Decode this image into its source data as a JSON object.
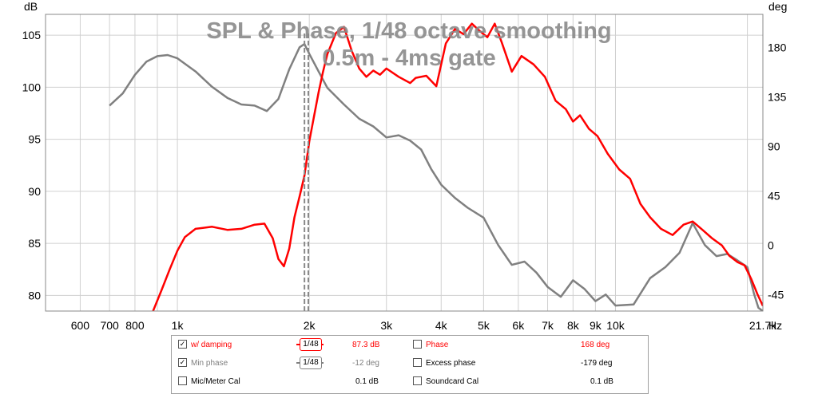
{
  "chart_data": {
    "type": "line",
    "title": "SPL & Phase, 1/48 octave smoothing",
    "subtitle": "0.5m - 4ms gate",
    "xlabel": "Hz",
    "ylabel_left": "dB",
    "ylabel_right": "deg",
    "x_scale": "log",
    "xlim": [
      500,
      21700
    ],
    "ylim_left": [
      78.5,
      107
    ],
    "ylim_right": [
      -60,
      210
    ],
    "grid": true,
    "x_ticks": [
      {
        "v": 600,
        "label": "600"
      },
      {
        "v": 700,
        "label": "700"
      },
      {
        "v": 800,
        "label": "800"
      },
      {
        "v": 1000,
        "label": "1k"
      },
      {
        "v": 2000,
        "label": "2k"
      },
      {
        "v": 3000,
        "label": "3k"
      },
      {
        "v": 4000,
        "label": "4k"
      },
      {
        "v": 5000,
        "label": "5k"
      },
      {
        "v": 6000,
        "label": "6k"
      },
      {
        "v": 7000,
        "label": "7k"
      },
      {
        "v": 8000,
        "label": "8k"
      },
      {
        "v": 9000,
        "label": "9k"
      },
      {
        "v": 10000,
        "label": "10k"
      },
      {
        "v": 21700,
        "label": "21.7k"
      }
    ],
    "y_ticks_left": [
      "80",
      "85",
      "90",
      "95",
      "100",
      "105"
    ],
    "y_ticks_right": [
      "-45",
      "0",
      "45",
      "90",
      "135",
      "180"
    ],
    "markers": [
      1950,
      1990
    ],
    "series": [
      {
        "name": "w/ damping",
        "axis": "left",
        "color": "#ff0000",
        "x": [
          880,
          920,
          960,
          1000,
          1040,
          1100,
          1200,
          1300,
          1400,
          1500,
          1580,
          1650,
          1700,
          1750,
          1800,
          1850,
          1900,
          1950,
          2000,
          2050,
          2100,
          2150,
          2200,
          2300,
          2400,
          2500,
          2600,
          2700,
          2800,
          2900,
          3000,
          3200,
          3400,
          3500,
          3700,
          3900,
          4100,
          4300,
          4500,
          4700,
          4900,
          5100,
          5300,
          5500,
          5800,
          6100,
          6500,
          6900,
          7300,
          7700,
          8000,
          8300,
          8700,
          9100,
          9600,
          10200,
          10800,
          11400,
          12000,
          12700,
          13500,
          14300,
          15000,
          15800,
          16600,
          17500,
          18200,
          19000,
          19700,
          20400,
          21100,
          21700
        ],
        "y": [
          78.5,
          80.5,
          82.5,
          84.3,
          85.6,
          86.4,
          86.6,
          86.3,
          86.4,
          86.8,
          86.9,
          85.5,
          83.5,
          82.8,
          84.5,
          87.5,
          89.5,
          91.5,
          94.8,
          97.2,
          99.5,
          101.5,
          103.2,
          105.2,
          105.8,
          103.5,
          101.8,
          101.0,
          101.6,
          101.2,
          101.8,
          101.0,
          100.4,
          100.9,
          101.1,
          100.1,
          104.2,
          105.6,
          105.1,
          106.1,
          105.4,
          104.8,
          106.1,
          104.3,
          101.5,
          103.0,
          102.2,
          101.0,
          98.7,
          97.9,
          96.7,
          97.3,
          96.0,
          95.3,
          93.6,
          92.1,
          91.2,
          88.8,
          87.5,
          86.4,
          85.8,
          86.8,
          87.1,
          86.3,
          85.5,
          84.8,
          83.8,
          83.2,
          82.9,
          81.6,
          80.1,
          79.0
        ]
      },
      {
        "name": "Min phase",
        "axis": "right",
        "color": "#808080",
        "x": [
          700,
          750,
          800,
          850,
          900,
          950,
          1000,
          1100,
          1200,
          1300,
          1400,
          1500,
          1600,
          1700,
          1800,
          1900,
          1950,
          2000,
          2100,
          2200,
          2400,
          2600,
          2800,
          3000,
          3200,
          3400,
          3600,
          3800,
          4000,
          4300,
          4600,
          5000,
          5400,
          5800,
          6200,
          6600,
          7000,
          7500,
          8000,
          8500,
          9000,
          9500,
          10000,
          11000,
          12000,
          13000,
          14000,
          15000,
          16000,
          17000,
          18000,
          19000,
          20000,
          20700,
          21200,
          21700
        ],
        "y": [
          127,
          138,
          155,
          167,
          172,
          173,
          170,
          158,
          144,
          134,
          128,
          127,
          122,
          133,
          160,
          180,
          183,
          174,
          158,
          143,
          128,
          115,
          108,
          98,
          100,
          95,
          87,
          69,
          55,
          43,
          34,
          25,
          0,
          -18,
          -15,
          -25,
          -38,
          -47,
          -32,
          -40,
          -51,
          -45,
          -55,
          -54,
          -30,
          -20,
          -7,
          20,
          0,
          -10,
          -8,
          -14,
          -20,
          -44,
          -57,
          -60
        ]
      }
    ]
  },
  "legend": {
    "row1": {
      "label_left": "w/ damping",
      "smoothing_left": "1/48",
      "value_left": "87.3 dB",
      "label_right": "Phase",
      "value_right": "168 deg",
      "checked_left": true,
      "checked_right": false
    },
    "row2": {
      "label_left": "Min phase",
      "smoothing_left": "1/48",
      "value_left": "-12 deg",
      "label_right": "Excess phase",
      "value_right": "-179 deg",
      "checked_left": true,
      "checked_right": false
    },
    "row3": {
      "label_left": "Mic/Meter Cal",
      "value_left": "0.1 dB",
      "label_right": "Soundcard Cal",
      "value_right": "0.1 dB",
      "checked_left": false,
      "checked_right": false
    },
    "checkmark": "✓",
    "colors": {
      "red": "#ff0000",
      "gray": "#808080",
      "black": "#000000"
    }
  }
}
